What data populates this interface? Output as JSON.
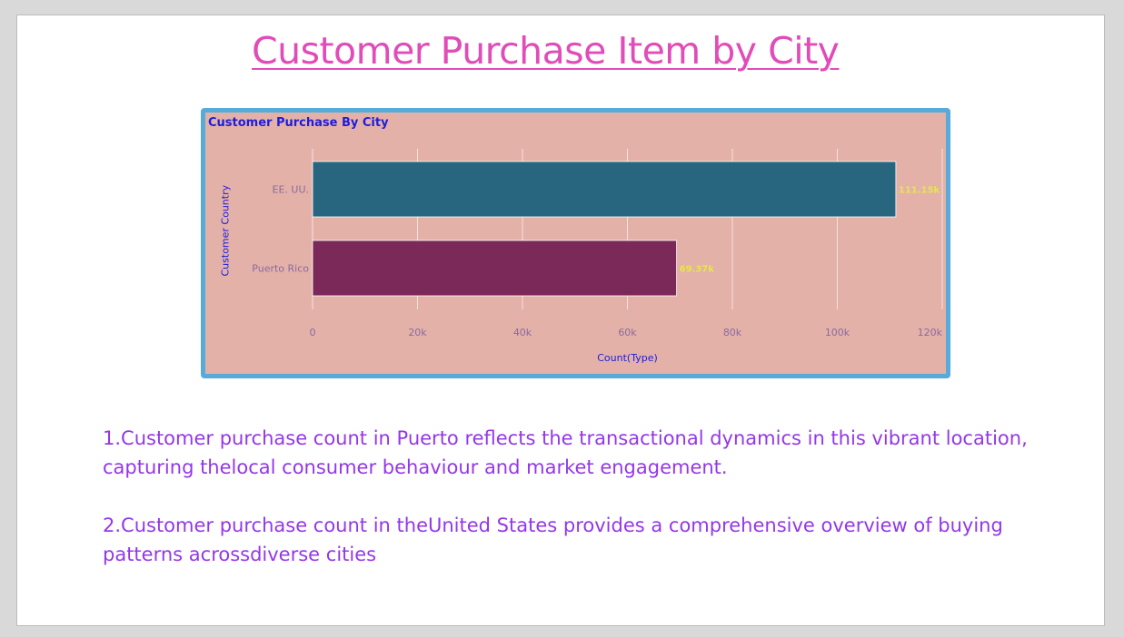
{
  "slide": {
    "title": "Customer Purchase Item by City"
  },
  "chart_data": {
    "type": "bar",
    "orientation": "horizontal",
    "title": "Customer Purchase By City",
    "xlabel": "Count(Type)",
    "ylabel": "Customer Country",
    "categories": [
      "EE. UU.",
      "Puerto Rico"
    ],
    "values": [
      111150,
      69370
    ],
    "data_labels": [
      "111.15k",
      "69.37k"
    ],
    "bar_colors": [
      "#286680",
      "#7b2959"
    ],
    "xlim": [
      0,
      120000
    ],
    "x_ticks": [
      0,
      20000,
      40000,
      60000,
      80000,
      100000,
      120000
    ],
    "x_tick_labels": [
      "0",
      "20k",
      "40k",
      "60k",
      "80k",
      "100k",
      "120k"
    ],
    "grid": true,
    "background_color": "#e4b1a8",
    "frame_color": "#56abd8"
  },
  "notes": [
    "1.Customer purchase count in Puerto reflects the transactional dynamics in this vibrant location, capturing thelocal consumer behaviour and market engagement.",
    "2.Customer purchase count in theUnited States provides a comprehensive overview of buying patterns acrossdiverse cities"
  ]
}
